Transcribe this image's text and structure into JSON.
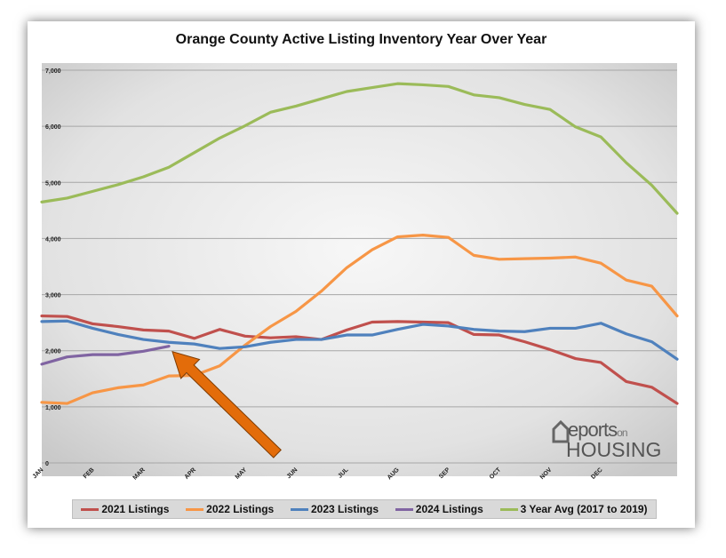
{
  "chart_data": {
    "type": "line",
    "title": "Orange County Active Listing Inventory Year Over Year",
    "xlabel": "",
    "ylabel": "",
    "ylim": [
      0,
      7000
    ],
    "y_ticks": [
      "0",
      "1,000",
      "2,000",
      "3,000",
      "4,000",
      "5,000",
      "6,000",
      "7,000"
    ],
    "x_tick_labels": [
      "JAN",
      "FEB",
      "MAR",
      "APR",
      "MAY",
      "JUN",
      "JUL",
      "AUG",
      "SEP",
      "OCT",
      "NOV",
      "DEC"
    ],
    "points_per_series": 24,
    "grid": true,
    "legend": "bottom",
    "series": [
      {
        "name": "2021 Listings",
        "color": "#c0504d",
        "values": [
          2620,
          2610,
          2480,
          2430,
          2370,
          2350,
          2220,
          2380,
          2260,
          2230,
          2250,
          2200,
          2370,
          2510,
          2520,
          2510,
          2500,
          2290,
          2280,
          2160,
          2020,
          1860,
          1790,
          1450
        ]
      },
      {
        "name": "2022 Listings",
        "color": "#f79646",
        "values": [
          1080,
          1060,
          1250,
          1340,
          1390,
          1550,
          1560,
          1730,
          2100,
          2430,
          2700,
          3060,
          3480,
          3800,
          4030,
          4060,
          4020,
          3700,
          3630,
          3640,
          3650,
          3670,
          3560,
          3260
        ]
      },
      {
        "name": "2023 Listings",
        "color": "#4f81bd",
        "values": [
          2520,
          2530,
          2400,
          2290,
          2200,
          2150,
          2120,
          2040,
          2070,
          2150,
          2200,
          2200,
          2280,
          2280,
          2380,
          2470,
          2440,
          2380,
          2350,
          2340,
          2400,
          2400,
          2490,
          2300
        ]
      },
      {
        "name": "2024 Listings",
        "color": "#8064a2",
        "values": [
          1760,
          1890,
          1930,
          1930,
          1990,
          2080
        ]
      },
      {
        "name": "3 Year Avg (2017 to 2019)",
        "color": "#9bbb59",
        "values": [
          4650,
          4720,
          4840,
          4960,
          5100,
          5270,
          5530,
          5790,
          6010,
          6250,
          6360,
          6490,
          6620,
          6690,
          6760,
          6740,
          6710,
          6560,
          6510,
          6390,
          6300,
          5990,
          5810,
          5350
        ]
      }
    ],
    "series_end_values": {
      "2021 Listings": [
        1350,
        1060
      ],
      "2022 Listings": [
        3150,
        2620
      ],
      "2023 Listings": [
        2160,
        1850
      ],
      "3 Year Avg (2017 to 2019)": [
        4950,
        4450
      ]
    },
    "annotation": {
      "type": "arrow",
      "color": "#e36c0a",
      "points_to": "2024 Listings"
    }
  },
  "logo": {
    "line1": "eports",
    "line1_small": "on",
    "line2": "HOUSING"
  }
}
